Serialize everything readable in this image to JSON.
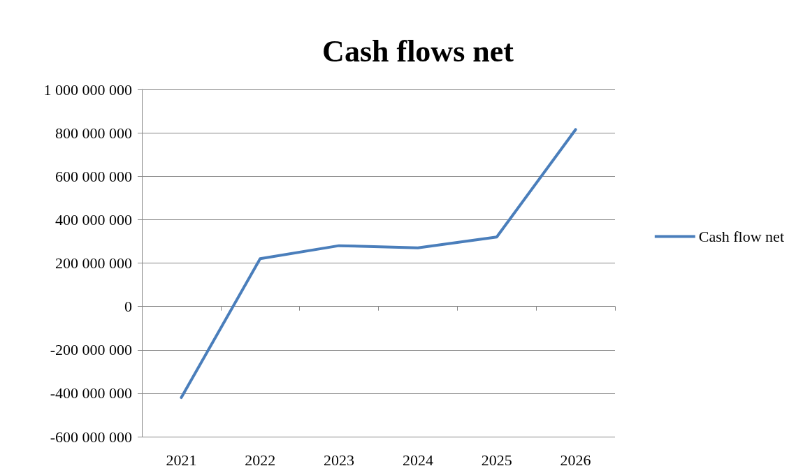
{
  "chart_data": {
    "type": "line",
    "title": "Cash flows net",
    "categories": [
      "2021",
      "2022",
      "2023",
      "2024",
      "2025",
      "2026"
    ],
    "series": [
      {
        "name": "Cash flow net",
        "color": "#4a7ebb",
        "values": [
          -420000000,
          220000000,
          280000000,
          270000000,
          320000000,
          815000000
        ]
      }
    ],
    "ylim": [
      -600000000,
      1000000000
    ],
    "yticks": [
      {
        "value": -600000000,
        "label": "-600 000 000"
      },
      {
        "value": -400000000,
        "label": "-400 000 000"
      },
      {
        "value": -200000000,
        "label": "-200 000 000"
      },
      {
        "value": 0,
        "label": "0"
      },
      {
        "value": 200000000,
        "label": "200 000 000"
      },
      {
        "value": 400000000,
        "label": "400 000 000"
      },
      {
        "value": 600000000,
        "label": "600 000 000"
      },
      {
        "value": 800000000,
        "label": "800 000 000"
      },
      {
        "value": 1000000000,
        "label": "1 000 000 000"
      }
    ],
    "grid": "y",
    "legend": "right",
    "marker": "none",
    "line_style": "solid"
  }
}
